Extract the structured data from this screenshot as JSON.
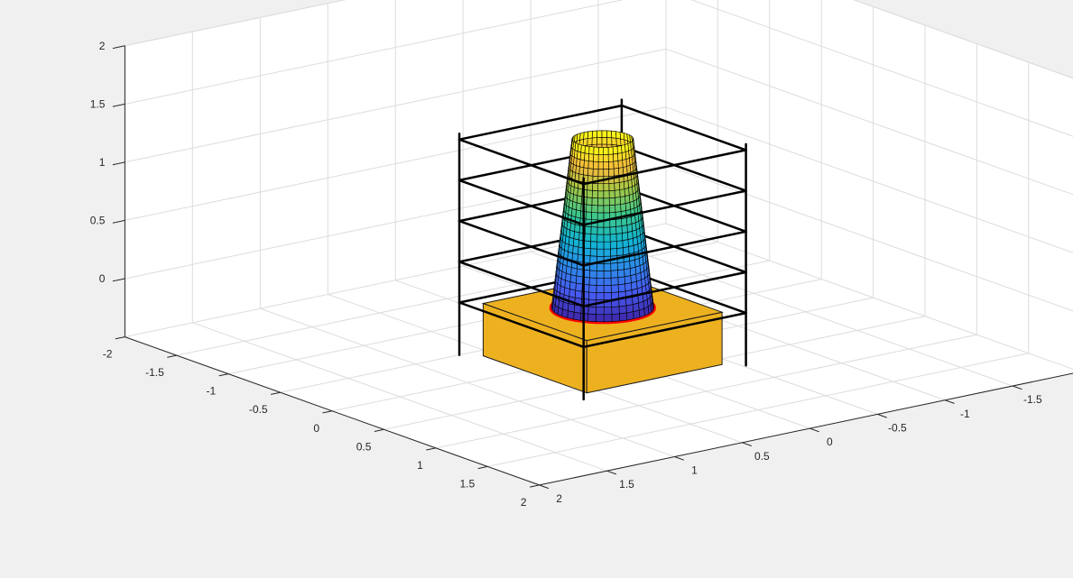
{
  "chart_data": {
    "type": "surface",
    "title": "",
    "xlabel": "",
    "ylabel": "",
    "zlabel": "",
    "xlim": [
      -2,
      2
    ],
    "ylim": [
      -2,
      2
    ],
    "zlim": [
      -0.5,
      2
    ],
    "grid": true,
    "x_ticks": [
      "-2",
      "-1.5",
      "-1",
      "-0.5",
      "0",
      "0.5",
      "1",
      "1.5",
      "2"
    ],
    "y_ticks": [
      "-2",
      "-1.5",
      "-1",
      "-0.5",
      "0",
      "0.5",
      "1",
      "1.5",
      "2"
    ],
    "z_ticks": [
      "0",
      "0.5",
      "1",
      "1.5",
      "2"
    ],
    "objects": [
      {
        "kind": "box",
        "color": "#edb120",
        "x_range": [
          -0.5,
          0.5
        ],
        "y_range": [
          -0.5,
          0.5
        ],
        "z_range": [
          -0.55,
          -0.1
        ]
      },
      {
        "kind": "cone_surface",
        "colormap": "parula",
        "base_radius": 0.3,
        "top_radius": 0.18,
        "z_range": [
          -0.1,
          1.35
        ],
        "center": [
          0,
          0
        ]
      },
      {
        "kind": "ring",
        "color": "#ff0000",
        "radius": 0.3,
        "z": -0.1
      },
      {
        "kind": "wire_frame",
        "color": "#000000",
        "x_range": [
          -0.6,
          0.6
        ],
        "y_range": [
          -0.6,
          0.6
        ],
        "z_range": [
          -0.55,
          1.35
        ],
        "levels": [
          -0.1,
          0.25,
          0.6,
          0.95,
          1.3
        ]
      }
    ]
  }
}
